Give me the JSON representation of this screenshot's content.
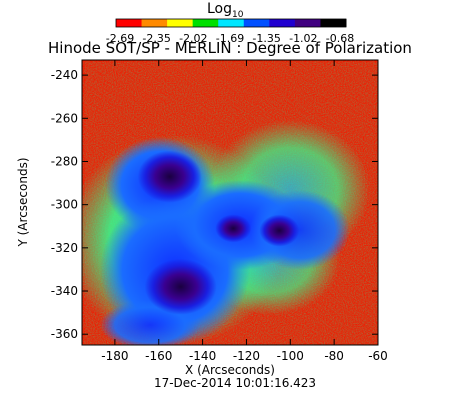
{
  "chart_data": {
    "type": "heatmap",
    "title": "Hinode SOT/SP - MERLIN : Degree of Polarization",
    "colorbar": {
      "label": "Log",
      "label_subscript": "10",
      "tick_labels": [
        "-2.69",
        "-2.35",
        "-2.02",
        "-1.69",
        "-1.35",
        "-1.02",
        "-0.68"
      ],
      "colors": [
        "#ff0000",
        "#ff8a00",
        "#ffff00",
        "#00e000",
        "#00e6ff",
        "#0050ff",
        "#2000d0",
        "#400080",
        "#000000"
      ]
    },
    "xlabel": "X (Arcseconds)",
    "ylabel": "Y (Arcseconds)",
    "xlim": [
      -195,
      -60
    ],
    "ylim": [
      -365,
      -233
    ],
    "xticks": [
      -180,
      -160,
      -140,
      -120,
      -100,
      -80,
      -60
    ],
    "yticks": [
      -240,
      -260,
      -280,
      -300,
      -320,
      -340,
      -360
    ],
    "features": [
      {
        "name": "umbra-upper-left",
        "x": -155,
        "y": -287,
        "value": -0.68
      },
      {
        "name": "umbra-lower-left",
        "x": -150,
        "y": -338,
        "value": -0.68
      },
      {
        "name": "umbra-center",
        "x": -126,
        "y": -311,
        "value": -0.8
      },
      {
        "name": "umbra-right",
        "x": -105,
        "y": -312,
        "value": -0.8
      }
    ]
  },
  "footer": {
    "timestamp": "17-Dec-2014 10:01:16.423"
  }
}
